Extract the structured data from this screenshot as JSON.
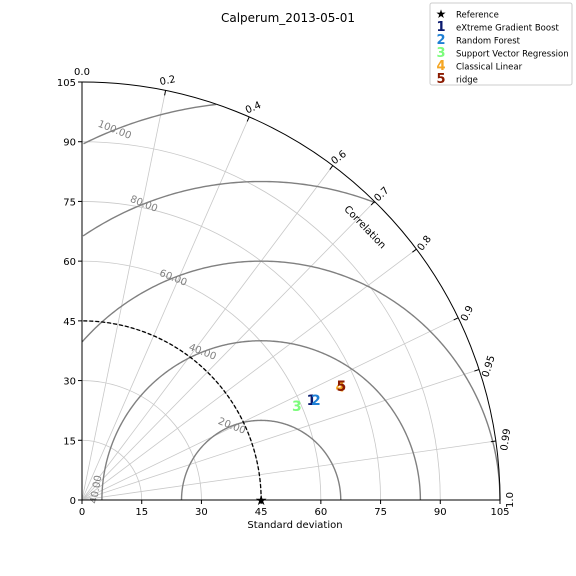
{
  "chart_data": {
    "type": "taylor-diagram",
    "title": "Calperum_2013-05-01",
    "xlabel": "Standard deviation",
    "correlation_label": "Correlation",
    "std_range": [
      0,
      105
    ],
    "std_ticks": [
      0,
      15,
      30,
      45,
      60,
      75,
      90,
      105
    ],
    "corr_ticks": [
      0.0,
      0.2,
      0.4,
      0.6,
      0.7,
      0.8,
      0.9,
      0.95,
      0.99,
      1.0
    ],
    "corr_tick_labels": [
      "0.0",
      "0.2",
      "0.4",
      "0.6",
      "0.7",
      "0.8",
      "0.9",
      "0.95",
      "0.99",
      "1.0"
    ],
    "reference": {
      "name": "Reference",
      "std": 45,
      "marker": "★",
      "color": "#000000"
    },
    "rms_contours": [
      20,
      40,
      60,
      80,
      100
    ],
    "rms_labels": [
      {
        "value": 20,
        "text": "20.00"
      },
      {
        "value": 40,
        "text": "40.00"
      },
      {
        "value": 60,
        "text": "60.00"
      },
      {
        "value": 80,
        "text": "80.00"
      },
      {
        "value": 100,
        "text": "100.00"
      }
    ],
    "origin_rms_label": "40.00",
    "series": [
      {
        "marker": "1",
        "name": "eXtreme Gradient Boost",
        "color": "#0a1a6e",
        "std": 63.0,
        "corr": 0.915
      },
      {
        "marker": "2",
        "name": "Random Forest",
        "color": "#1e7fd4",
        "std": 64.0,
        "corr": 0.918
      },
      {
        "marker": "3",
        "name": "Support Vector Regression",
        "color": "#7cfc7c",
        "std": 59.0,
        "corr": 0.915
      },
      {
        "marker": "4",
        "name": "Classical Linear",
        "color": "#f5a623",
        "std": 71.0,
        "corr": 0.914
      },
      {
        "marker": "5",
        "name": "ridge",
        "color": "#8b1a00",
        "std": 71.3,
        "corr": 0.914
      }
    ],
    "legend_position": "top-right",
    "grid": true
  }
}
